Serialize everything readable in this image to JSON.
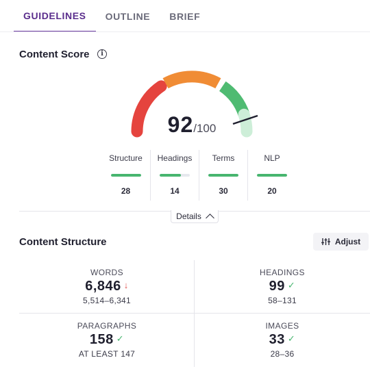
{
  "tabs": [
    {
      "label": "GUIDELINES",
      "active": true
    },
    {
      "label": "OUTLINE",
      "active": false
    },
    {
      "label": "BRIEF",
      "active": false
    }
  ],
  "content_score": {
    "title": "Content Score",
    "info_icon": "info-circle-icon",
    "score": "92",
    "max": "/100",
    "gauge_colors": [
      "#e5443e",
      "#f08c35",
      "#4fbb72",
      "#cdeed8"
    ],
    "metrics": [
      {
        "label": "Structure",
        "value": "28",
        "progress": 1.0
      },
      {
        "label": "Headings",
        "value": "14",
        "progress": 0.7
      },
      {
        "label": "Terms",
        "value": "30",
        "progress": 1.0
      },
      {
        "label": "NLP",
        "value": "20",
        "progress": 1.0
      }
    ],
    "details_label": "Details"
  },
  "content_structure": {
    "title": "Content Structure",
    "adjust_label": "Adjust",
    "adjust_icon": "sliders-icon",
    "stats": {
      "words": {
        "label": "WORDS",
        "value": "6,846",
        "mark": "↓",
        "range": "5,514–6,341"
      },
      "headings": {
        "label": "HEADINGS",
        "value": "99",
        "mark": "✓",
        "range": "58–131"
      },
      "paragraphs": {
        "label": "PARAGRAPHS",
        "value": "158",
        "mark": "✓",
        "range": "AT LEAST 147"
      },
      "images": {
        "label": "IMAGES",
        "value": "33",
        "mark": "✓",
        "range": "28–36"
      }
    }
  }
}
